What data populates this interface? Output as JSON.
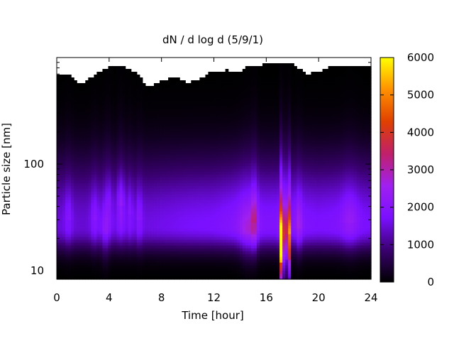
{
  "chart_data": {
    "type": "heatmap",
    "title": "dN / d log d (5/9/1)",
    "xlabel": "Time [hour]",
    "ylabel": "Particle size [nm]",
    "xlim": [
      0,
      24
    ],
    "ylim": [
      8.3,
      1000
    ],
    "y_scale": "log",
    "x_ticks": [
      0,
      4,
      8,
      12,
      16,
      20,
      24
    ],
    "x_tick_labels": [
      "0",
      "4",
      "8",
      "12",
      "16",
      "20",
      "24"
    ],
    "y_ticks": [
      10,
      100
    ],
    "y_tick_labels": [
      "10",
      "100"
    ],
    "colorbar": {
      "range": [
        0,
        6000
      ],
      "ticks": [
        0,
        1000,
        2000,
        3000,
        4000,
        5000,
        6000
      ],
      "tick_labels": [
        "0",
        "1000",
        "2000",
        "3000",
        "4000",
        "5000",
        "6000"
      ],
      "colormap": [
        "#000000",
        "#3a0070",
        "#7a10ff",
        "#a020f0",
        "#c0206a",
        "#e04000",
        "#ff9000",
        "#ffff00"
      ]
    },
    "background_mode_nm": 26,
    "background_by_hour": [
      {
        "hour": 0,
        "value": 1500
      },
      {
        "hour": 2,
        "value": 1450
      },
      {
        "hour": 4,
        "value": 1550
      },
      {
        "hour": 6,
        "value": 1500
      },
      {
        "hour": 8,
        "value": 1600
      },
      {
        "hour": 10,
        "value": 1700
      },
      {
        "hour": 12,
        "value": 1750
      },
      {
        "hour": 14,
        "value": 2000
      },
      {
        "hour": 16,
        "value": 1850
      },
      {
        "hour": 18,
        "value": 1900
      },
      {
        "hour": 20,
        "value": 1750
      },
      {
        "hour": 22,
        "value": 1850
      },
      {
        "hour": 24,
        "value": 1700
      }
    ],
    "upper_size_limit_nm_by_hour": [
      {
        "hour": 0,
        "value": 700
      },
      {
        "hour": 1,
        "value": 680
      },
      {
        "hour": 1.5,
        "value": 600
      },
      {
        "hour": 2,
        "value": 560
      },
      {
        "hour": 3,
        "value": 700
      },
      {
        "hour": 4,
        "value": 820
      },
      {
        "hour": 5,
        "value": 850
      },
      {
        "hour": 6,
        "value": 720
      },
      {
        "hour": 7,
        "value": 520
      },
      {
        "hour": 8,
        "value": 600
      },
      {
        "hour": 9,
        "value": 660
      },
      {
        "hour": 10,
        "value": 580
      },
      {
        "hour": 11,
        "value": 640
      },
      {
        "hour": 12,
        "value": 750
      },
      {
        "hour": 13,
        "value": 760
      },
      {
        "hour": 14,
        "value": 740
      },
      {
        "hour": 14.5,
        "value": 830
      },
      {
        "hour": 15,
        "value": 850
      },
      {
        "hour": 16,
        "value": 860
      },
      {
        "hour": 17,
        "value": 860
      },
      {
        "hour": 18,
        "value": 870
      },
      {
        "hour": 19,
        "value": 700
      },
      {
        "hour": 20,
        "value": 740
      },
      {
        "hour": 21,
        "value": 840
      },
      {
        "hour": 22,
        "value": 850
      },
      {
        "hour": 23,
        "value": 850
      },
      {
        "hour": 24,
        "value": 830
      }
    ],
    "events": [
      {
        "hour": 0.9,
        "width_h": 0.3,
        "mode_nm": 30,
        "value": 400
      },
      {
        "hour": 2.9,
        "width_h": 0.3,
        "mode_nm": 30,
        "value": 450
      },
      {
        "hour": 3.7,
        "width_h": 0.3,
        "mode_nm": 22,
        "value": 500
      },
      {
        "hour": 4.0,
        "width_h": 0.25,
        "mode_nm": 40,
        "value": 400
      },
      {
        "hour": 4.9,
        "width_h": 0.3,
        "mode_nm": 40,
        "value": 700
      },
      {
        "hour": 5.6,
        "width_h": 0.22,
        "mode_nm": 35,
        "value": 400
      },
      {
        "hour": 6.3,
        "width_h": 0.25,
        "mode_nm": 30,
        "value": 450
      },
      {
        "hour": 14.6,
        "width_h": 0.6,
        "mode_nm": 22,
        "value": 600
      },
      {
        "hour": 15.1,
        "width_h": 0.25,
        "mode_nm": 28,
        "value": 900
      },
      {
        "hour": 17.2,
        "width_h": 0.12,
        "mode_nm": 12,
        "value": 4400
      },
      {
        "hour": 17.2,
        "width_h": 0.15,
        "mode_nm": 20,
        "value": 2800
      },
      {
        "hour": 17.7,
        "width_h": 0.12,
        "mode_nm": 13,
        "value": 3000
      },
      {
        "hour": 17.7,
        "width_h": 0.15,
        "mode_nm": 22,
        "value": 2000
      },
      {
        "hour": 18.5,
        "width_h": 0.25,
        "mode_nm": 25,
        "value": 600
      },
      {
        "hour": 22.4,
        "width_h": 0.6,
        "mode_nm": 28,
        "value": 400
      }
    ]
  }
}
